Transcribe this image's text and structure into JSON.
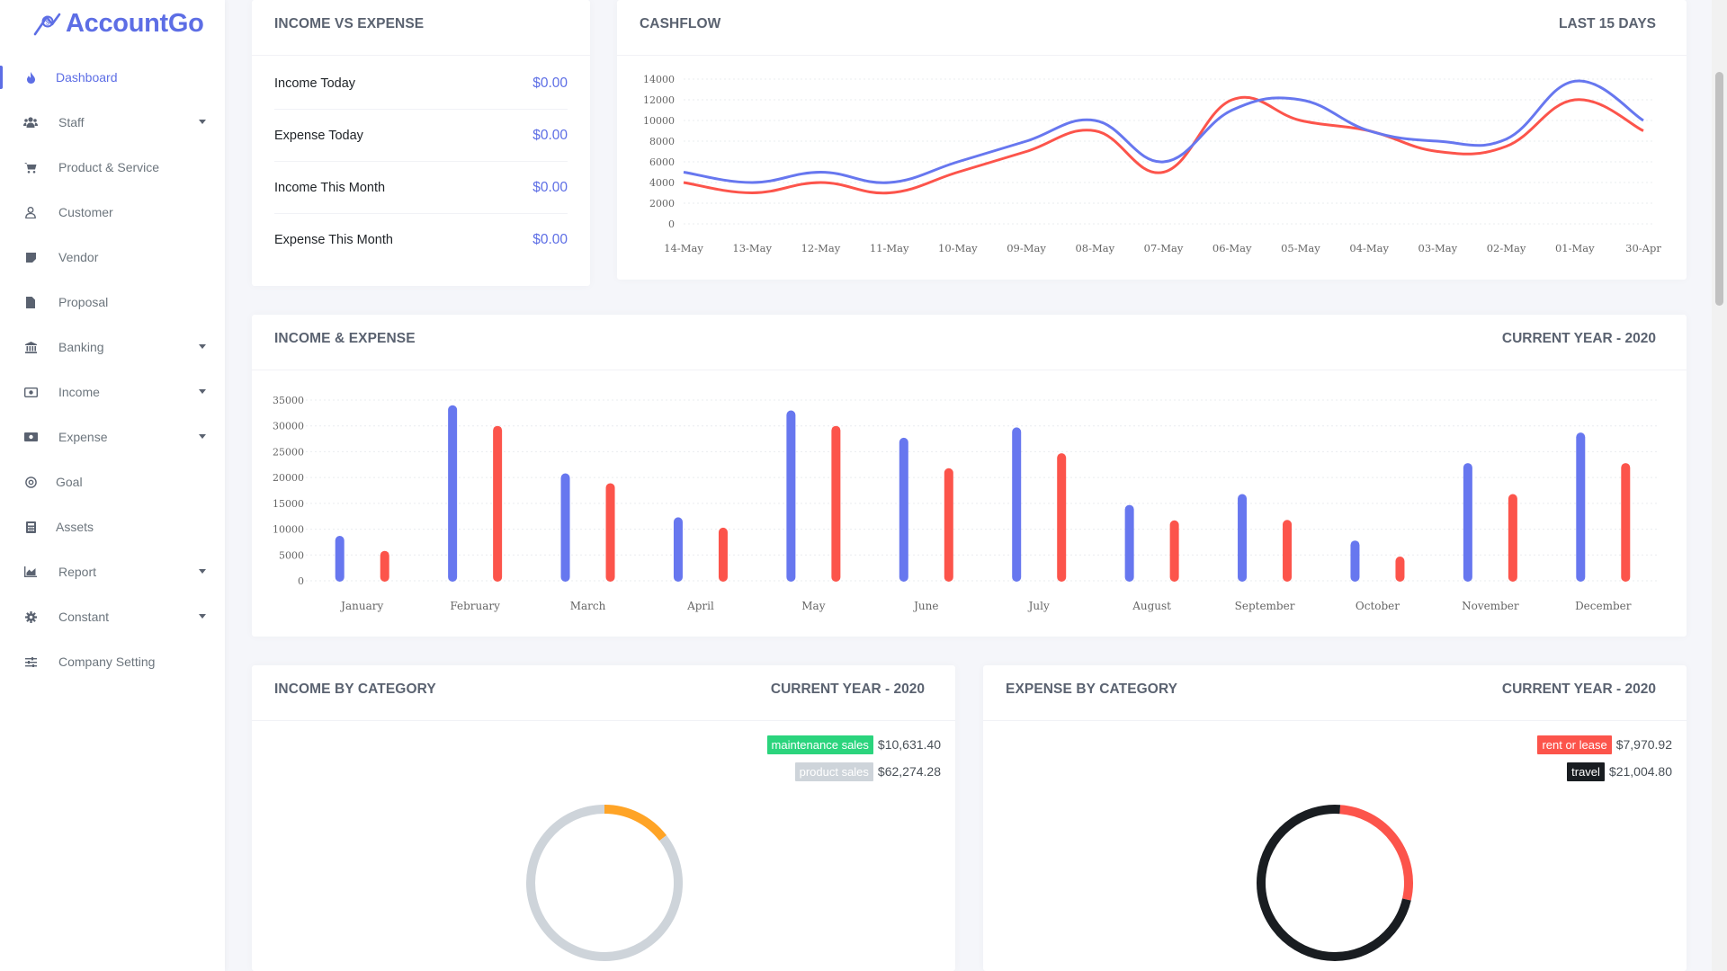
{
  "brand": {
    "name": "AccountGo",
    "color": "#5d6ee5"
  },
  "sidebar": {
    "items": [
      {
        "label": "Dashboard",
        "icon": "fire-icon",
        "active": true
      },
      {
        "label": "Staff",
        "icon": "users-icon",
        "has_sub": true
      },
      {
        "label": "Product & Service",
        "icon": "cart-icon"
      },
      {
        "label": "Customer",
        "icon": "user-icon"
      },
      {
        "label": "Vendor",
        "icon": "sticky-note-icon"
      },
      {
        "label": "Proposal",
        "icon": "file-icon"
      },
      {
        "label": "Banking",
        "icon": "bank-icon",
        "has_sub": true
      },
      {
        "label": "Income",
        "icon": "money-icon",
        "has_sub": true
      },
      {
        "label": "Expense",
        "icon": "money-bill-icon",
        "has_sub": true
      },
      {
        "label": "Goal",
        "icon": "target-icon"
      },
      {
        "label": "Assets",
        "icon": "calculator-icon"
      },
      {
        "label": "Report",
        "icon": "area-chart-icon",
        "has_sub": true
      },
      {
        "label": "Constant",
        "icon": "gear-icon",
        "has_sub": true
      },
      {
        "label": "Company Setting",
        "icon": "sliders-icon"
      }
    ]
  },
  "income_vs_expense": {
    "title": "INCOME VS EXPENSE",
    "rows": [
      {
        "label": "Income Today",
        "value": "$0.00"
      },
      {
        "label": "Expense Today",
        "value": "$0.00"
      },
      {
        "label": "Income This Month",
        "value": "$0.00"
      },
      {
        "label": "Expense This Month",
        "value": "$0.00"
      }
    ]
  },
  "cashflow": {
    "title": "CASHFLOW",
    "period": "LAST 15 DAYS"
  },
  "income_expense": {
    "title": "INCOME & EXPENSE",
    "period": "CURRENT YEAR - 2020"
  },
  "income_by_category": {
    "title": "INCOME BY CATEGORY",
    "period": "CURRENT YEAR - 2020",
    "legend": [
      {
        "label": "maintenance sales",
        "value": "$10,631.40",
        "color": "#2bd47d"
      },
      {
        "label": "product sales",
        "value": "$62,274.28",
        "color": "#ced4da"
      }
    ]
  },
  "expense_by_category": {
    "title": "EXPENSE BY CATEGORY",
    "period": "CURRENT YEAR - 2020",
    "legend": [
      {
        "label": "rent or lease",
        "value": "$7,970.92",
        "color": "#fc544b"
      },
      {
        "label": "travel",
        "value": "$21,004.80",
        "color": "#191d21"
      }
    ]
  },
  "colors": {
    "income": "#6777ef",
    "expense": "#fc544b",
    "income_donut_a": "#ffa426",
    "income_donut_b": "#ced4da"
  },
  "chart_data": [
    {
      "type": "line",
      "title": "CASHFLOW",
      "x": [
        "14-May",
        "13-May",
        "12-May",
        "11-May",
        "10-May",
        "09-May",
        "08-May",
        "07-May",
        "06-May",
        "05-May",
        "04-May",
        "03-May",
        "02-May",
        "01-May",
        "30-Apr"
      ],
      "yticks": [
        "0",
        "2000",
        "4000",
        "6000",
        "8000",
        "10000",
        "12000",
        "14000"
      ],
      "ylim": [
        0,
        14000
      ],
      "grid": true,
      "series": [
        {
          "values": [
            5000,
            4000,
            5000,
            4000,
            6000,
            8000,
            10000,
            6000,
            11000,
            12000,
            9000,
            8000,
            8200,
            13800,
            10000
          ]
        },
        {
          "values": [
            4000,
            3000,
            4000,
            3000,
            5000,
            7000,
            9000,
            5000,
            12000,
            10000,
            9000,
            7000,
            7500,
            12000,
            9000
          ]
        }
      ]
    },
    {
      "type": "bar",
      "title": "INCOME & EXPENSE",
      "categories": [
        "January",
        "February",
        "March",
        "April",
        "May",
        "June",
        "July",
        "August",
        "September",
        "October",
        "November",
        "December"
      ],
      "yticks": [
        "0",
        "5000",
        "10000",
        "15000",
        "20000",
        "25000",
        "30000",
        "35000"
      ],
      "ylim": [
        0,
        35000
      ],
      "grid": true,
      "series": [
        {
          "values": [
            8700,
            34000,
            20800,
            12300,
            33000,
            27700,
            29700,
            14700,
            16800,
            7800,
            22800,
            28700
          ]
        },
        {
          "values": [
            5800,
            30000,
            18900,
            10300,
            30000,
            21800,
            24700,
            11700,
            11800,
            4700,
            16800,
            22800
          ]
        }
      ]
    },
    {
      "type": "pie",
      "title": "INCOME BY CATEGORY",
      "categories": [
        "maintenance sales",
        "product sales"
      ],
      "values": [
        10631.4,
        62274.28
      ]
    },
    {
      "type": "pie",
      "title": "EXPENSE BY CATEGORY",
      "categories": [
        "rent or lease",
        "travel"
      ],
      "values": [
        7970.92,
        21004.8
      ]
    }
  ]
}
